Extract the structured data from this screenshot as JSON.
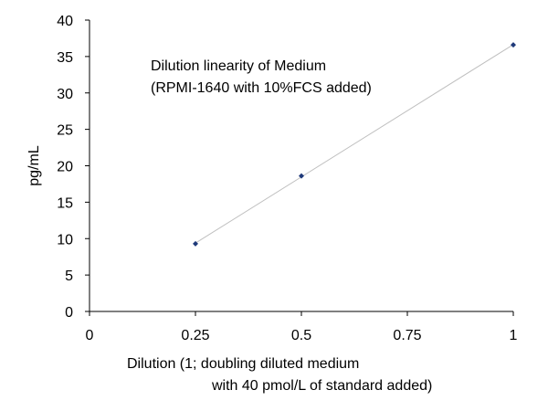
{
  "chart_data": {
    "type": "scatter",
    "title": "",
    "annotation": {
      "lines": [
        "Dilution linearity of Medium",
        "(RPMI-1640 with 10%FCS added)"
      ]
    },
    "xlabel_lines": [
      "Dilution (1; doubling diluted medium",
      "with 40 pmol/L of standard added)"
    ],
    "ylabel": "pg/mL",
    "xlim": [
      0,
      1
    ],
    "ylim": [
      0,
      40
    ],
    "x_ticks": [
      0,
      0.25,
      0.5,
      0.75,
      1
    ],
    "x_tick_labels": [
      "0",
      "0.25",
      "0.5",
      "0.75",
      "1"
    ],
    "y_ticks": [
      0,
      5,
      10,
      15,
      20,
      25,
      30,
      35,
      40
    ],
    "y_tick_labels": [
      "0",
      "5",
      "10",
      "15",
      "20",
      "25",
      "30",
      "35",
      "40"
    ],
    "grid": false,
    "legend": "none",
    "series": [
      {
        "points": [
          {
            "x": 0.25,
            "y": 9.3
          },
          {
            "x": 0.5,
            "y": 18.6
          },
          {
            "x": 1,
            "y": 36.6
          }
        ],
        "color": "#1f3a7a"
      }
    ],
    "trendline": {
      "type": "linear",
      "color": "#bfbfbf"
    }
  }
}
